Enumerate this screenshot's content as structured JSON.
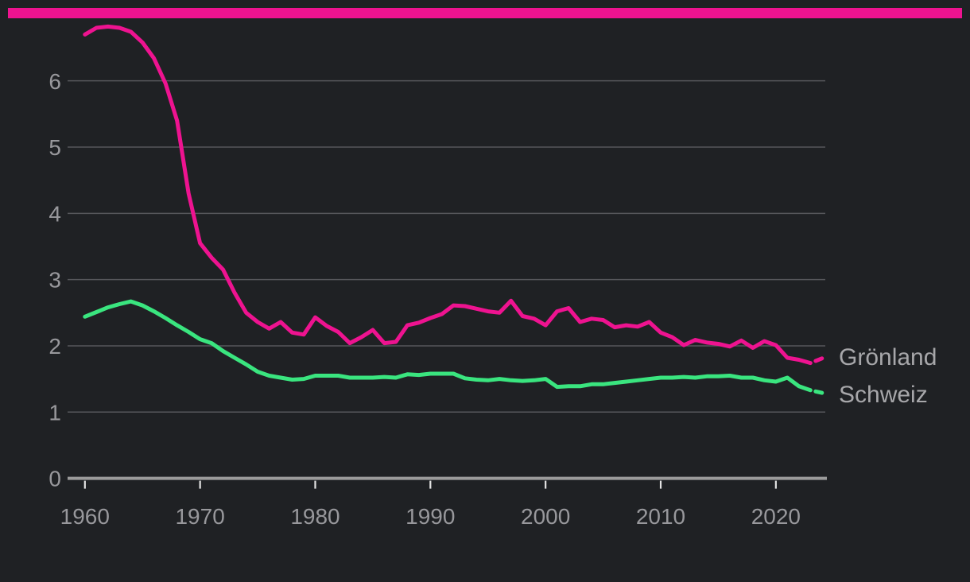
{
  "page": {
    "background_color": "#1f2124",
    "accent_bar_color": "#ee1390"
  },
  "chart_data": {
    "type": "line",
    "title": "",
    "xlabel": "",
    "ylabel": "",
    "grid": true,
    "legend_position": "right-inline",
    "ylim": [
      0,
      7
    ],
    "yticks": [
      0,
      1,
      2,
      3,
      4,
      5,
      6
    ],
    "xticks": [
      1960,
      1970,
      1980,
      1990,
      2000,
      2010,
      2020
    ],
    "x_range": [
      1960,
      2024
    ],
    "last_segment_dashed": true,
    "x": [
      1960,
      1961,
      1962,
      1963,
      1964,
      1965,
      1966,
      1967,
      1968,
      1969,
      1970,
      1971,
      1972,
      1973,
      1974,
      1975,
      1976,
      1977,
      1978,
      1979,
      1980,
      1981,
      1982,
      1983,
      1984,
      1985,
      1986,
      1987,
      1988,
      1989,
      1990,
      1991,
      1992,
      1993,
      1994,
      1995,
      1996,
      1997,
      1998,
      1999,
      2000,
      2001,
      2002,
      2003,
      2004,
      2005,
      2006,
      2007,
      2008,
      2009,
      2010,
      2011,
      2012,
      2013,
      2014,
      2015,
      2016,
      2017,
      2018,
      2019,
      2020,
      2021,
      2022,
      2023,
      2024
    ],
    "series": [
      {
        "name": "Grönland",
        "color": "#ee1390",
        "values": [
          6.7,
          6.8,
          6.82,
          6.8,
          6.74,
          6.58,
          6.34,
          5.96,
          5.4,
          4.3,
          3.55,
          3.33,
          3.15,
          2.8,
          2.5,
          2.36,
          2.26,
          2.36,
          2.2,
          2.17,
          2.43,
          2.3,
          2.21,
          2.04,
          2.13,
          2.24,
          2.04,
          2.06,
          2.31,
          2.35,
          2.42,
          2.48,
          2.61,
          2.6,
          2.56,
          2.52,
          2.5,
          2.68,
          2.45,
          2.41,
          2.31,
          2.52,
          2.57,
          2.36,
          2.41,
          2.39,
          2.28,
          2.31,
          2.29,
          2.36,
          2.2,
          2.13,
          2.01,
          2.09,
          2.05,
          2.03,
          1.99,
          2.08,
          1.97,
          2.07,
          2.01,
          1.82,
          1.79,
          1.74,
          1.81
        ]
      },
      {
        "name": "Schweiz",
        "color": "#3ae57f",
        "values": [
          2.44,
          2.51,
          2.58,
          2.63,
          2.67,
          2.61,
          2.52,
          2.42,
          2.31,
          2.21,
          2.1,
          2.04,
          1.92,
          1.82,
          1.72,
          1.61,
          1.55,
          1.52,
          1.49,
          1.5,
          1.55,
          1.55,
          1.55,
          1.52,
          1.52,
          1.52,
          1.53,
          1.52,
          1.57,
          1.56,
          1.58,
          1.58,
          1.58,
          1.51,
          1.49,
          1.48,
          1.5,
          1.48,
          1.47,
          1.48,
          1.5,
          1.38,
          1.39,
          1.39,
          1.42,
          1.42,
          1.44,
          1.46,
          1.48,
          1.5,
          1.52,
          1.52,
          1.53,
          1.52,
          1.54,
          1.54,
          1.55,
          1.52,
          1.52,
          1.48,
          1.46,
          1.52,
          1.39,
          1.33,
          1.29
        ]
      }
    ],
    "axis_colors": {
      "gridline": "#56575b",
      "baseline": "#9b9b9b",
      "tick_mark": "#e3e3e3",
      "tick_label": "#98989c",
      "series_label": "#a7a7aa"
    }
  }
}
